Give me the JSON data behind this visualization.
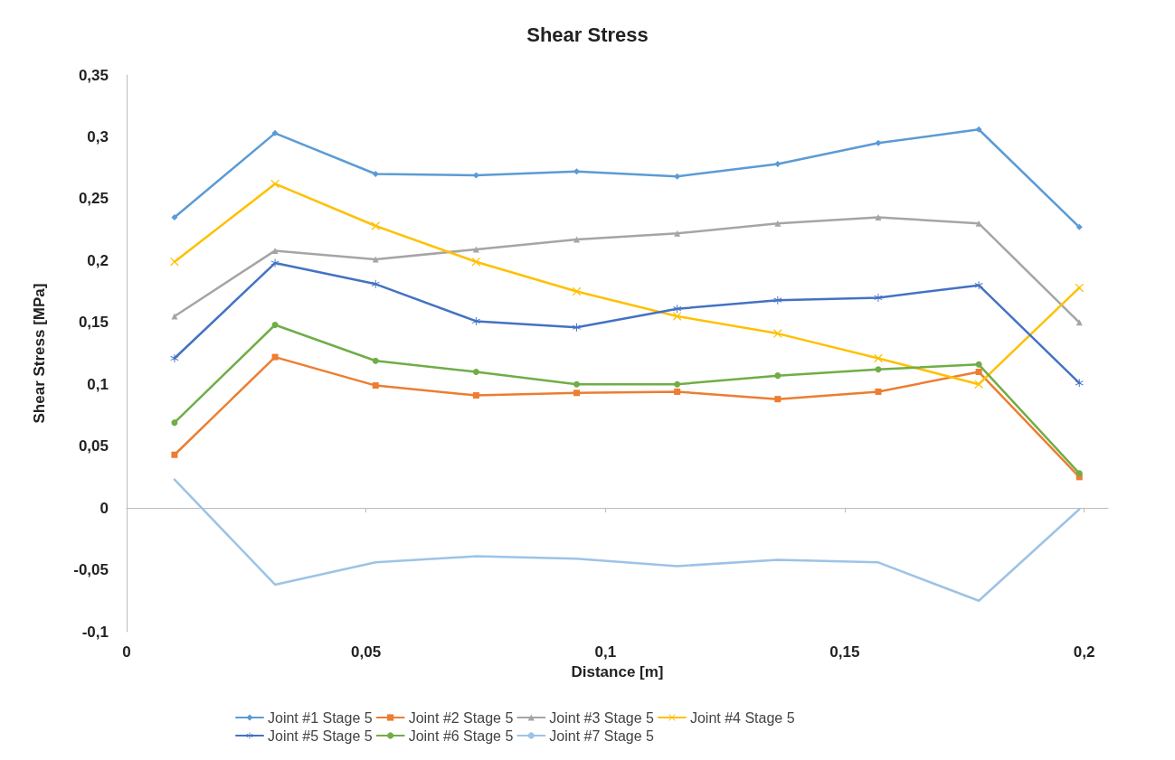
{
  "chart_data": {
    "type": "line",
    "title": "Shear Stress",
    "xlabel": "Distance [m]",
    "ylabel": "Shear Stress [MPa]",
    "x": [
      0.01,
      0.031,
      0.052,
      0.073,
      0.094,
      0.115,
      0.136,
      0.157,
      0.178,
      0.199
    ],
    "series": [
      {
        "name": "Joint #1 Stage 5",
        "color": "#5b9bd5",
        "marker": "diamond",
        "values": [
          0.235,
          0.303,
          0.27,
          0.269,
          0.272,
          0.268,
          0.278,
          0.295,
          0.306,
          0.227
        ]
      },
      {
        "name": "Joint #2 Stage 5",
        "color": "#ed7d31",
        "marker": "square",
        "values": [
          0.043,
          0.122,
          0.099,
          0.091,
          0.093,
          0.094,
          0.088,
          0.094,
          0.11,
          0.025
        ]
      },
      {
        "name": "Joint #3 Stage 5",
        "color": "#a5a5a5",
        "marker": "triangle",
        "values": [
          0.155,
          0.208,
          0.201,
          0.209,
          0.217,
          0.222,
          0.23,
          0.235,
          0.23,
          0.15
        ]
      },
      {
        "name": "Joint #4 Stage 5",
        "color": "#ffc000",
        "marker": "cross",
        "values": [
          0.199,
          0.262,
          0.228,
          0.199,
          0.175,
          0.155,
          0.141,
          0.121,
          0.1,
          0.178
        ]
      },
      {
        "name": "Joint #5 Stage 5",
        "color": "#4472c4",
        "marker": "star",
        "values": [
          0.121,
          0.198,
          0.181,
          0.151,
          0.146,
          0.161,
          0.168,
          0.17,
          0.18,
          0.101
        ]
      },
      {
        "name": "Joint #6 Stage 5",
        "color": "#70ad47",
        "marker": "circle",
        "values": [
          0.069,
          0.148,
          0.119,
          0.11,
          0.1,
          0.1,
          0.107,
          0.112,
          0.116,
          0.028
        ]
      },
      {
        "name": "Joint #7 Stage 5",
        "color": "#9dc3e6",
        "marker": "none",
        "values": [
          0.023,
          -0.062,
          -0.044,
          -0.039,
          -0.041,
          -0.047,
          -0.042,
          -0.044,
          -0.075,
          -0.001
        ]
      }
    ],
    "xlim": [
      0,
      0.205
    ],
    "xticks": [
      0,
      {
        "value": 0.05,
        "label": "0,05"
      },
      {
        "value": 0.1,
        "label": "0,1"
      },
      {
        "value": 0.15,
        "label": "0,15"
      },
      {
        "value": 0.2,
        "label": "0,2"
      }
    ],
    "ylim": [
      -0.1,
      0.35
    ],
    "yticks": [
      {
        "value": -0.1,
        "label": "-0,1"
      },
      {
        "value": -0.05,
        "label": "-0,05"
      },
      0,
      {
        "value": 0.05,
        "label": "0,05"
      },
      {
        "value": 0.1,
        "label": "0,1"
      },
      {
        "value": 0.15,
        "label": "0,15"
      },
      {
        "value": 0.2,
        "label": "0,2"
      },
      {
        "value": 0.25,
        "label": "0,25"
      },
      {
        "value": 0.3,
        "label": "0,3"
      },
      {
        "value": 0.35,
        "label": "0,35"
      }
    ],
    "legend": "bottom",
    "line_style": "solid"
  }
}
